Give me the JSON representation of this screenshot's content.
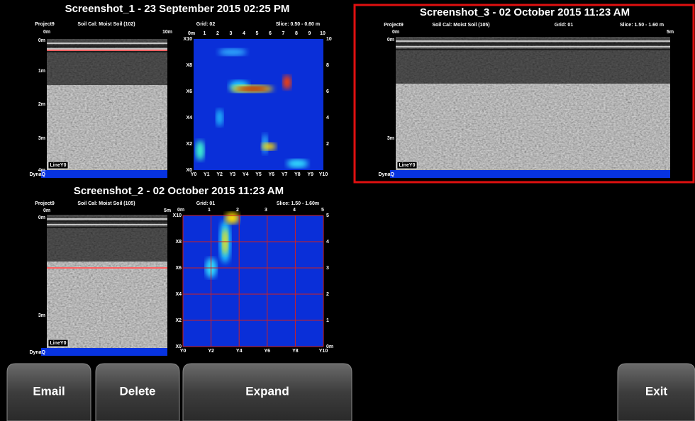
{
  "panels": [
    {
      "title": "Screenshot_1 - 23 September 2015 02:25 PM",
      "project": "Project9",
      "soil_cal": "Soil Cal: Moist Soil (102)",
      "grid": "Grid: 02",
      "slice": "Slice: 0.50 - 0.60 m",
      "distance_labels": [
        "0m",
        "10m"
      ],
      "depth_labels": [
        "0m",
        "1m",
        "2m",
        "3m",
        "4m"
      ],
      "line_label": "LineY0",
      "brand": "DynaQ",
      "map": {
        "top_labels": [
          "0m",
          "1",
          "2",
          "3",
          "4",
          "5",
          "6",
          "7",
          "8",
          "9",
          "10"
        ],
        "left_labels": [
          "X10",
          "X8",
          "X6",
          "X4",
          "X2",
          "X0"
        ],
        "right_labels": [
          "10",
          "8",
          "6",
          "4",
          "2"
        ],
        "bottom_labels": [
          "Y0",
          "Y1",
          "Y2",
          "Y3",
          "Y4",
          "Y5",
          "Y6",
          "Y7",
          "Y8",
          "Y9",
          "Y10"
        ]
      }
    },
    {
      "title": "Screenshot_2 - 02 October 2015 11:23 AM",
      "project": "Project9",
      "soil_cal": "Soil Cal: Moist Soil (105)",
      "grid": "Grid: 01",
      "slice": "Slice: 1.50 - 1.60m",
      "distance_labels": [
        "0m",
        "5m"
      ],
      "depth_labels": [
        "0m",
        "3m"
      ],
      "line_label": "LineY0",
      "brand": "DynaQ",
      "map": {
        "top_labels": [
          "0m",
          "1",
          "2",
          "3",
          "4",
          "5"
        ],
        "left_labels": [
          "X10",
          "X8",
          "X6",
          "X4",
          "X2",
          "X0"
        ],
        "right_labels": [
          "5",
          "4",
          "3",
          "2",
          "1",
          "0m"
        ],
        "bottom_labels": [
          "Y0",
          "Y2",
          "Y4",
          "Y6",
          "Y8",
          "Y10"
        ]
      }
    },
    {
      "title": "Screenshot_3 - 02 October 2015 11:23 AM",
      "project": "Project9",
      "soil_cal": "Soil Cal: Moist Soil (105)",
      "grid": "Grid: 01",
      "slice": "Slice: 1.50 - 1.60 m",
      "distance_labels": [
        "0m",
        "5m"
      ],
      "depth_labels": [
        "0m",
        "3m"
      ],
      "line_label": "LineY0",
      "brand": "DynaQ"
    }
  ],
  "buttons": [
    "Email",
    "Delete",
    "Expand",
    "Exit"
  ]
}
